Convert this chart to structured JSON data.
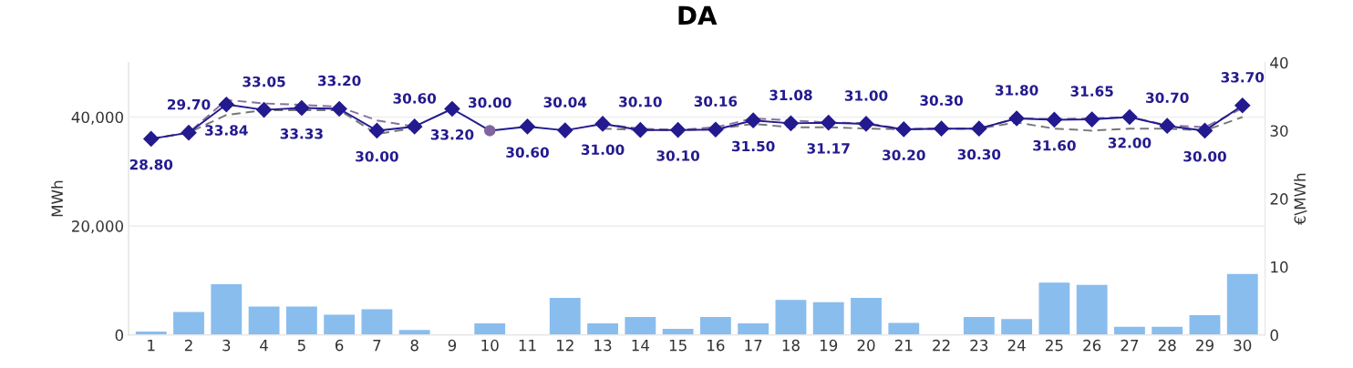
{
  "chart_data": {
    "type": "bar",
    "title": "DA",
    "ylabel": "MWh",
    "y2label": "€\\MWh",
    "categories": [
      "1",
      "2",
      "3",
      "4",
      "5",
      "6",
      "7",
      "8",
      "9",
      "10",
      "11",
      "12",
      "13",
      "14",
      "15",
      "16",
      "17",
      "18",
      "19",
      "20",
      "21",
      "22",
      "23",
      "24",
      "25",
      "26",
      "27",
      "28",
      "29",
      "30"
    ],
    "series": [
      {
        "color": "#89bdee",
        "values": [
          600,
          4200,
          9300,
          5200,
          5200,
          3700,
          4700,
          900,
          0,
          2100,
          0,
          6800,
          2100,
          3300,
          1100,
          3300,
          2100,
          6400,
          6000,
          6800,
          2200,
          0,
          3300,
          2900,
          9600,
          9200,
          1500,
          1500,
          3600,
          11200
        ]
      },
      {
        "type": "line",
        "axis": "y2",
        "color": "#8a6fa0",
        "line_style": "dashed",
        "marker": "none",
        "values": [
          28.8,
          29.7,
          34.5,
          34.0,
          33.8,
          33.5,
          31.5,
          30.6,
          null,
          null,
          null,
          null,
          31.0,
          30.3,
          30.1,
          30.5,
          31.8,
          31.5,
          31.2,
          31.1,
          30.2,
          30.3,
          30.3,
          31.8,
          31.7,
          31.8,
          32.0,
          30.8,
          30.5,
          33.3
        ]
      },
      {
        "type": "line",
        "axis": "y2",
        "color": "#777777",
        "line_style": "dashed",
        "marker": "none",
        "values": [
          28.8,
          29.7,
          32.3,
          33.0,
          33.0,
          33.0,
          29.5,
          30.4,
          null,
          null,
          null,
          null,
          30.3,
          30.1,
          30.1,
          30.2,
          31.0,
          30.5,
          30.5,
          30.3,
          30.2,
          30.3,
          30.3,
          31.2,
          30.3,
          30.0,
          30.3,
          30.3,
          30.0,
          32.0
        ]
      },
      {
        "type": "line",
        "axis": "y2",
        "color": "#231a8f",
        "line_style": "solid",
        "marker": "diamond",
        "colors": [
          "#231a8f",
          "#231a8f",
          "#231a8f",
          "#231a8f",
          "#231a8f",
          "#231a8f",
          "#231a8f",
          "#231a8f",
          "#231a8f",
          "#8064a0",
          "#231a8f",
          "#231a8f",
          "#231a8f",
          "#231a8f",
          "#231a8f",
          "#231a8f",
          "#231a8f",
          "#231a8f",
          "#231a8f",
          "#231a8f",
          "#231a8f",
          "#231a8f",
          "#231a8f",
          "#231a8f",
          "#231a8f",
          "#231a8f",
          "#231a8f",
          "#231a8f",
          "#231a8f",
          "#231a8f"
        ],
        "data_labels": true,
        "values": [
          28.8,
          29.7,
          33.84,
          33.05,
          33.33,
          33.2,
          30.0,
          30.6,
          33.2,
          30.0,
          30.6,
          30.04,
          31.0,
          30.1,
          30.1,
          30.16,
          31.5,
          31.08,
          31.17,
          31.0,
          30.2,
          30.3,
          30.3,
          31.8,
          31.6,
          31.65,
          32.0,
          30.7,
          30.0,
          33.7
        ],
        "value_labels": [
          "28.80",
          "29.70",
          "33.84",
          "33.05",
          "33.33",
          "33.20",
          "30.00",
          "30.60",
          "33.20",
          "30.00",
          "30.60",
          "30.04",
          "31.00",
          "30.10",
          "30.10",
          "30.16",
          "31.50",
          "31.08",
          "31.17",
          "31.00",
          "30.20",
          "30.30",
          "30.30",
          "31.80",
          "31.60",
          "31.65",
          "32.00",
          "30.70",
          "30.00",
          "33.70"
        ]
      }
    ],
    "ylim": [
      0,
      50000
    ],
    "yticks": [
      {
        "value": 0,
        "label": "0"
      },
      {
        "value": 20000,
        "label": "20,000"
      },
      {
        "value": 40000,
        "label": "40,000"
      }
    ],
    "y2lim": [
      0,
      40
    ],
    "y2ticks": [
      0,
      10,
      20,
      30,
      40
    ],
    "grid": "y",
    "legend": false
  }
}
